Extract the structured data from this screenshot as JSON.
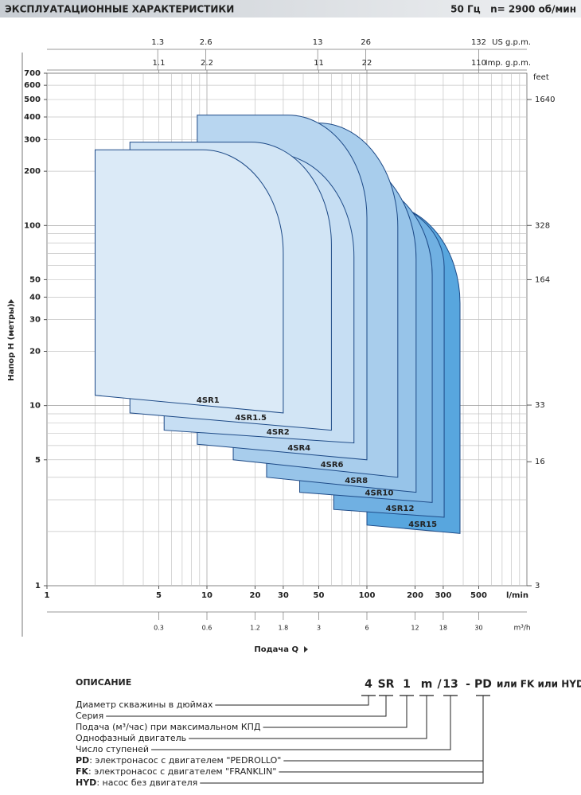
{
  "header": {
    "title": "ЭКСПЛУАТАЦИОННЫЕ ХАРАКТЕРИСТИКИ",
    "conditions": "50 Гц   n= 2900 об/мин"
  },
  "chart_data": {
    "type": "area",
    "x_label": "Подача Q",
    "y_label": "Напор H (метры)",
    "x_unit": "l/min",
    "y2_unit": "feet",
    "log_x": true,
    "log_y": true,
    "grid": true,
    "xlim": [
      1,
      1000
    ],
    "ylim": [
      1,
      700
    ],
    "xticks": [
      1,
      5,
      10,
      20,
      30,
      50,
      100,
      200,
      300,
      500
    ],
    "xgrid": [
      2,
      3,
      4,
      5,
      6,
      7,
      8,
      9,
      10,
      20,
      30,
      40,
      50,
      60,
      70,
      80,
      90,
      100,
      200,
      300,
      400,
      500,
      600,
      700,
      800,
      900
    ],
    "yticks": [
      1,
      5,
      10,
      20,
      30,
      40,
      50,
      100,
      200,
      300,
      400,
      500,
      600,
      700
    ],
    "ygrid": [
      2,
      3,
      4,
      5,
      6,
      7,
      8,
      9,
      10,
      20,
      30,
      40,
      50,
      60,
      70,
      80,
      90,
      100,
      200,
      300,
      400,
      500,
      600
    ],
    "y2lim": [
      3.28,
      2296
    ],
    "y2ticks": [
      {
        "value": 3.28,
        "label": "3"
      },
      16,
      33,
      164,
      328,
      1640
    ],
    "top_axes": [
      {
        "unit": "US g.p.m.",
        "lim": [
          0.264,
          264
        ],
        "ticks": [
          1.3,
          2.6,
          13,
          26,
          132
        ]
      },
      {
        "unit": "Imp. g.p.m.",
        "lim": [
          0.22,
          220
        ],
        "ticks": [
          1.1,
          2.2,
          11,
          22,
          110
        ]
      }
    ],
    "bottom_axis": {
      "unit": "m³/h",
      "lim": [
        0.06,
        60
      ],
      "ticks": [
        0.3,
        0.6,
        1.2,
        1.8,
        3,
        6,
        12,
        18,
        30
      ]
    },
    "series": [
      {
        "name": "4SR1",
        "color": "#dbeaf7",
        "x": [
          2,
          9.4,
          30,
          30,
          2
        ],
        "values": [
          263,
          263,
          70,
          9.1,
          11.4
        ]
      },
      {
        "name": "4SR1.5",
        "color": "#d2e5f5",
        "x": [
          3.3,
          19,
          60,
          60,
          3.3
        ],
        "values": [
          290,
          290,
          78,
          7.3,
          9.1
        ]
      },
      {
        "name": "4SR2",
        "color": "#c6def3",
        "x": [
          5.4,
          26,
          83,
          83,
          5.4
        ],
        "values": [
          250,
          250,
          67,
          6.2,
          7.3
        ]
      },
      {
        "name": "4SR4",
        "color": "#b8d6f0",
        "x": [
          8.7,
          32,
          100,
          100,
          8.7
        ],
        "values": [
          410,
          410,
          110,
          5,
          6.1
        ]
      },
      {
        "name": "4SR6",
        "color": "#a8cdec",
        "x": [
          14.6,
          50,
          156,
          156,
          14.6
        ],
        "values": [
          370,
          370,
          98,
          4,
          5
        ]
      },
      {
        "name": "4SR8",
        "color": "#97c4e9",
        "x": [
          23.6,
          65,
          203,
          203,
          23.6
        ],
        "values": [
          245,
          245,
          65,
          3.3,
          4
        ]
      },
      {
        "name": "4SR10",
        "color": "#84bae5",
        "x": [
          38,
          81,
          256,
          256,
          38
        ],
        "values": [
          180,
          180,
          53,
          2.9,
          3.3
        ]
      },
      {
        "name": "4SR12",
        "color": "#70b0e2",
        "x": [
          62,
          97,
          304,
          304,
          62
        ],
        "values": [
          140,
          140,
          59,
          2.4,
          2.65
        ]
      },
      {
        "name": "4SR15",
        "color": "#58a6de",
        "x": [
          100,
          122,
          382,
          382,
          100
        ],
        "values": [
          132,
          132,
          37,
          1.95,
          2.17
        ]
      }
    ]
  },
  "description": {
    "title": "ОПИСАНИЕ",
    "code": [
      "4",
      "SR",
      "1",
      "m",
      "/",
      "13",
      "-",
      "PD",
      "или FK или HYD"
    ],
    "items": [
      {
        "text": "Диаметр скважины в дюймах"
      },
      {
        "text": "Серия"
      },
      {
        "text": "Подача (м³/час) при максимальном КПД"
      },
      {
        "text": "Однофазный двигатель"
      },
      {
        "text": "Число ступеней"
      },
      {
        "key": "PD",
        "text": ": электронасос с двигателем \"PEDROLLO\""
      },
      {
        "key": "FK",
        "text": ": электронасос с двигателем \"FRANKLIN\""
      },
      {
        "key": "HYD",
        "text": ": насос без двигателя"
      }
    ]
  }
}
